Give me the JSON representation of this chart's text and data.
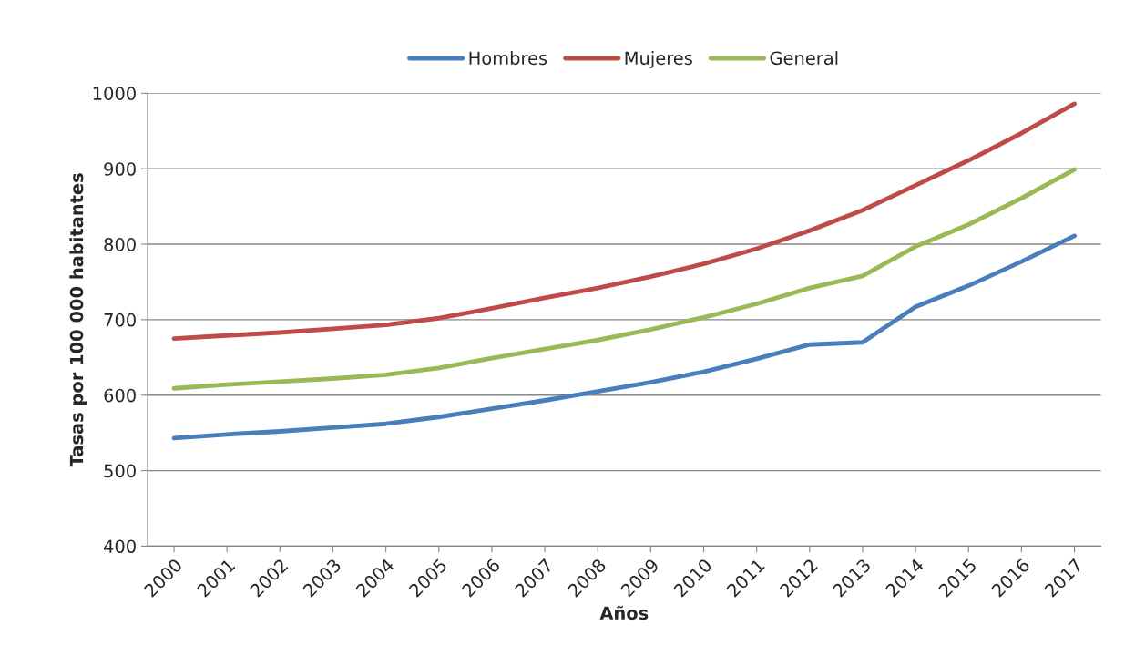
{
  "chart_data": {
    "type": "line",
    "xlabel": "Años",
    "ylabel": "Tasas por 100 000 habitantes",
    "categories": [
      "2000",
      "2001",
      "2002",
      "2003",
      "2004",
      "2005",
      "2006",
      "2007",
      "2008",
      "2009",
      "2010",
      "2011",
      "2012",
      "2013",
      "2014",
      "2015",
      "2016",
      "2017"
    ],
    "series": [
      {
        "name": "Hombres",
        "color": "#4a7ebb",
        "values": [
          543,
          548,
          552,
          557,
          562,
          571,
          582,
          593,
          605,
          617,
          631,
          648,
          667,
          670,
          717,
          745,
          777,
          811
        ]
      },
      {
        "name": "Mujeres",
        "color": "#be4b48",
        "values": [
          675,
          679,
          683,
          688,
          693,
          702,
          715,
          729,
          742,
          757,
          774,
          794,
          818,
          845,
          878,
          911,
          947,
          986
        ]
      },
      {
        "name": "General",
        "color": "#98b954",
        "values": [
          609,
          614,
          618,
          622,
          627,
          636,
          649,
          661,
          673,
          687,
          703,
          721,
          742,
          758,
          797,
          826,
          861,
          899
        ]
      }
    ],
    "ylim": [
      400,
      1000
    ],
    "yticks": [
      400,
      500,
      600,
      700,
      800,
      900,
      1000
    ],
    "grid": "y",
    "legend": "top",
    "marker": "none",
    "line_style": "solid"
  }
}
